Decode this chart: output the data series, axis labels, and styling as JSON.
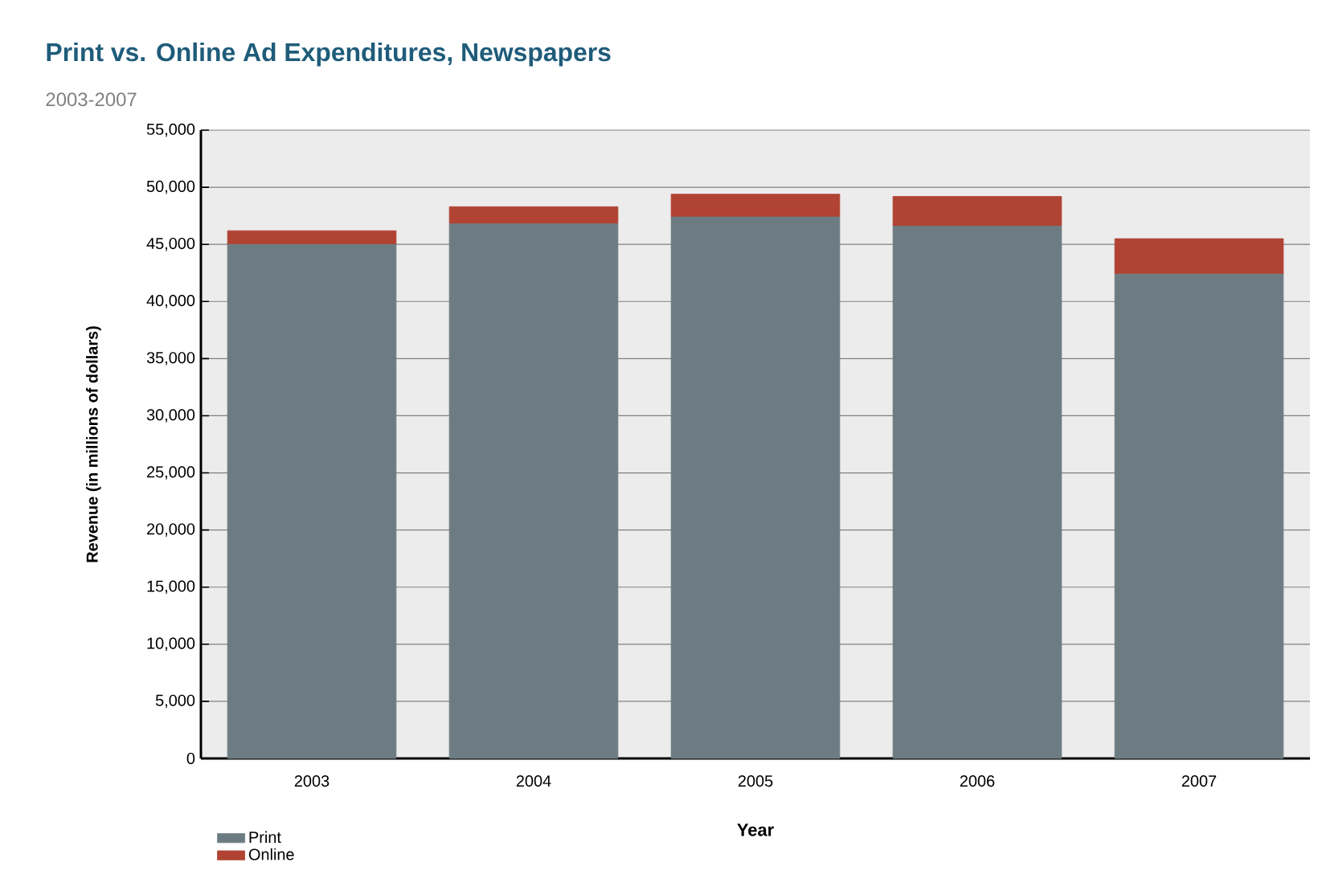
{
  "chart_data": {
    "type": "bar",
    "title": "Print vs. Online Ad Expenditures, Newspapers",
    "subtitle": "2003-2007",
    "xlabel": "Year",
    "ylabel": "Revenue (in millions of dollars)",
    "categories": [
      "2003",
      "2004",
      "2005",
      "2006",
      "2007"
    ],
    "series": [
      {
        "name": "Print",
        "color": "#6d7c82",
        "values": [
          45000,
          46800,
          47400,
          46600,
          42400
        ]
      },
      {
        "name": "Online",
        "color": "#b04333",
        "values": [
          1200,
          1500,
          2000,
          2600,
          3100
        ]
      }
    ],
    "stacked": true,
    "ylim": [
      0,
      55000
    ],
    "yticks": [
      {
        "value": 0,
        "label": "0"
      },
      {
        "value": 5000,
        "label": "5,000"
      },
      {
        "value": 10000,
        "label": "10,000"
      },
      {
        "value": 15000,
        "label": "15,000"
      },
      {
        "value": 20000,
        "label": "20,000"
      },
      {
        "value": 25000,
        "label": "25,000"
      },
      {
        "value": 30000,
        "label": "30,000"
      },
      {
        "value": 35000,
        "label": "35,000"
      },
      {
        "value": 40000,
        "label": "40,000"
      },
      {
        "value": 45000,
        "label": "45,000"
      },
      {
        "value": 50000,
        "label": "50,000"
      },
      {
        "value": 55000,
        "label": "55,000"
      }
    ],
    "grid": "y",
    "legend": "bottom"
  }
}
